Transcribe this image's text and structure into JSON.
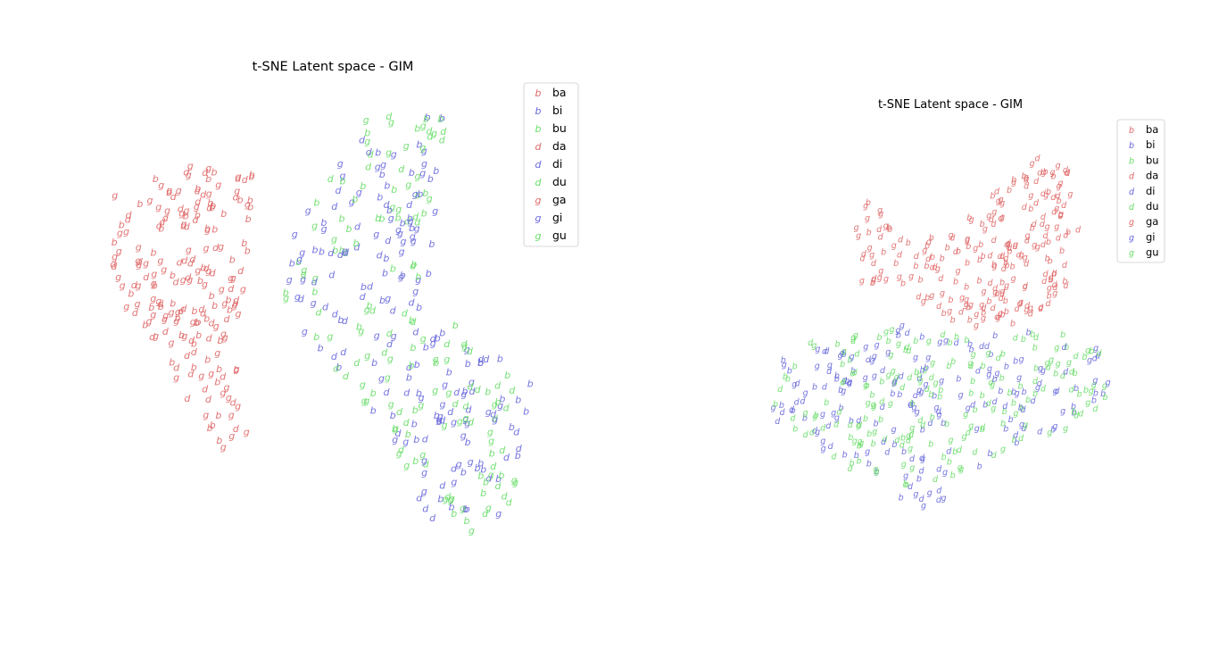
{
  "chart_data": [
    {
      "type": "scatter",
      "title": "t-SNE Latent space - GIM",
      "xlabel": "",
      "ylabel": "",
      "axes": "off",
      "grid": false,
      "legend_position": "top-right",
      "series": [
        {
          "name": "ba",
          "marker": "b",
          "color": "#e06666"
        },
        {
          "name": "bi",
          "marker": "b",
          "color": "#6666dd"
        },
        {
          "name": "bu",
          "marker": "b",
          "color": "#66dd66"
        },
        {
          "name": "da",
          "marker": "d",
          "color": "#e06666"
        },
        {
          "name": "di",
          "marker": "d",
          "color": "#6666dd"
        },
        {
          "name": "du",
          "marker": "d",
          "color": "#66dd66"
        },
        {
          "name": "ga",
          "marker": "g",
          "color": "#e06666"
        },
        {
          "name": "gi",
          "marker": "g",
          "color": "#6666dd"
        },
        {
          "name": "gu",
          "marker": "g",
          "color": "#66dd66"
        }
      ],
      "clusters": [
        {
          "group": "a",
          "type": "poly",
          "points": [
            [
              -8.5,
              8
            ],
            [
              -4.5,
              10.5
            ],
            [
              -1,
              9.5
            ],
            [
              -1,
              4
            ],
            [
              -2,
              -4
            ],
            [
              -1,
              -12
            ],
            [
              -3.5,
              -13
            ],
            [
              -5,
              -7
            ],
            [
              -8.5,
              1
            ]
          ],
          "count": 200,
          "seed": 11
        },
        {
          "group": "iu",
          "type": "poly",
          "points": [
            [
              1,
              5.5
            ],
            [
              5,
              14.5
            ],
            [
              9,
              15
            ],
            [
              8.5,
              6
            ],
            [
              8,
              -1
            ],
            [
              11,
              -4
            ],
            [
              14,
              -8
            ],
            [
              12,
              -19
            ],
            [
              8,
              -19
            ],
            [
              6,
              -11
            ],
            [
              2,
              -4
            ],
            [
              0.5,
              0
            ]
          ],
          "count": 330,
          "seed": 23
        }
      ]
    },
    {
      "type": "scatter",
      "title": "t-SNE Latent space - GIM",
      "xlabel": "",
      "ylabel": "",
      "axes": "off",
      "grid": false,
      "legend_position": "top-right",
      "series": [
        {
          "name": "ba",
          "marker": "b",
          "color": "#e06666"
        },
        {
          "name": "bi",
          "marker": "b",
          "color": "#6666dd"
        },
        {
          "name": "bu",
          "marker": "b",
          "color": "#66dd66"
        },
        {
          "name": "da",
          "marker": "d",
          "color": "#e06666"
        },
        {
          "name": "di",
          "marker": "d",
          "color": "#6666dd"
        },
        {
          "name": "du",
          "marker": "d",
          "color": "#66dd66"
        },
        {
          "name": "ga",
          "marker": "g",
          "color": "#e06666"
        },
        {
          "name": "gi",
          "marker": "g",
          "color": "#6666dd"
        },
        {
          "name": "gu",
          "marker": "g",
          "color": "#66dd66"
        }
      ],
      "clusters": [
        {
          "group": "a",
          "type": "poly",
          "points": [
            [
              -6,
              10
            ],
            [
              -3,
              6
            ],
            [
              2,
              9
            ],
            [
              7,
              14
            ],
            [
              9,
              12
            ],
            [
              10,
              6
            ],
            [
              9,
              2
            ],
            [
              4,
              -1
            ],
            [
              0,
              0
            ],
            [
              -4,
              2
            ],
            [
              -7,
              3
            ],
            [
              -8,
              7
            ]
          ],
          "count": 230,
          "seed": 37
        },
        {
          "group": "iu",
          "type": "poly",
          "points": [
            [
              -13,
              -3
            ],
            [
              -9,
              -1
            ],
            [
              -4,
              0
            ],
            [
              0,
              -1
            ],
            [
              5,
              -1
            ],
            [
              10,
              -1
            ],
            [
              13,
              -4
            ],
            [
              11,
              -8
            ],
            [
              6,
              -10
            ],
            [
              2,
              -12
            ],
            [
              -2,
              -16
            ],
            [
              -6,
              -13
            ],
            [
              -10,
              -11
            ],
            [
              -14,
              -8
            ]
          ],
          "count": 380,
          "seed": 53
        }
      ]
    }
  ]
}
